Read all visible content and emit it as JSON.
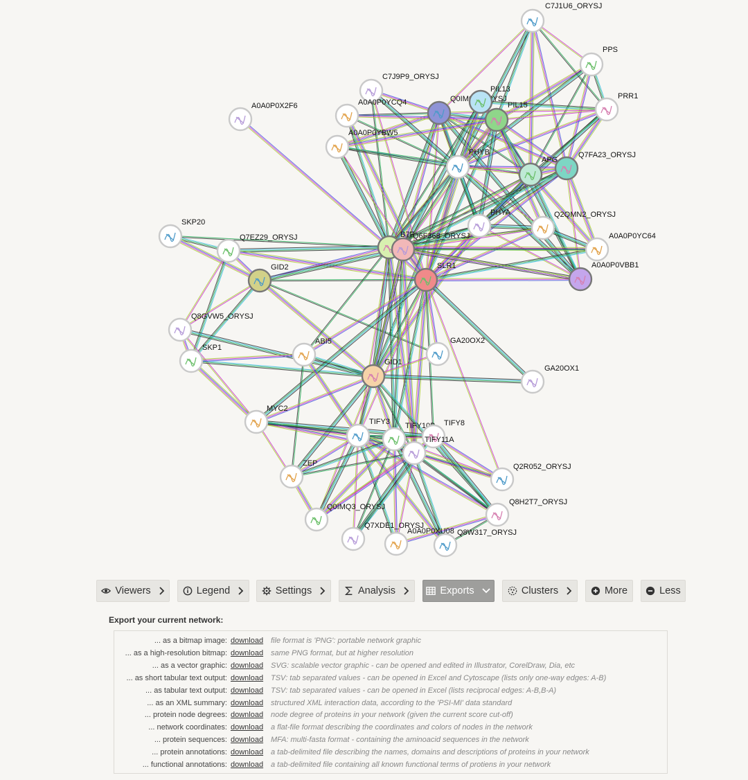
{
  "network": {
    "nodes": [
      {
        "id": "C7J1U6_ORYSJ",
        "label": "C7J1U6_ORYSJ",
        "color": "#ffffff"
      },
      {
        "id": "PPS",
        "label": "PPS",
        "color": "#ffffff"
      },
      {
        "id": "PRR1",
        "label": "PRR1",
        "color": "#ffffff"
      },
      {
        "id": "C7J9P9_ORYSJ",
        "label": "C7J9P9_ORYSJ",
        "color": "#ffffff"
      },
      {
        "id": "A0A0P0YCQ4",
        "label": "A0A0P0YCQ4",
        "color": "#ffffff"
      },
      {
        "id": "Q0IM00_ORYSJ",
        "label": "Q0IM00_ORYSJ",
        "color": "#8e93d6"
      },
      {
        "id": "PIL13",
        "label": "PIL13",
        "color": "#b9e3f5"
      },
      {
        "id": "PIL15",
        "label": "PIL15",
        "color": "#8fd68a"
      },
      {
        "id": "A0A0P0X2F6",
        "label": "A0A0P0X2F6",
        "color": "#ffffff"
      },
      {
        "id": "A0A0P0YBW5",
        "label": "A0A0P0YBW5",
        "color": "#ffffff"
      },
      {
        "id": "PHYB",
        "label": "PHYB",
        "color": "#ffffff"
      },
      {
        "id": "APG",
        "label": "APG",
        "color": "#bfe9d6"
      },
      {
        "id": "Q7FA23_ORYSJ",
        "label": "Q7FA23_ORYSJ",
        "color": "#7dd6c4"
      },
      {
        "id": "PHYA",
        "label": "PHYA",
        "color": "#ffffff"
      },
      {
        "id": "Q2QMN2_ORYSJ",
        "label": "Q2QMN2_ORYSJ",
        "color": "#ffffff"
      },
      {
        "id": "SKP20",
        "label": "SKP20",
        "color": "#ffffff"
      },
      {
        "id": "Q7EZ29_ORYSJ",
        "label": "Q7EZ29_ORYSJ",
        "color": "#ffffff"
      },
      {
        "id": "B7F",
        "label": "B7F",
        "color": "#d8f0b0"
      },
      {
        "id": "Q6F368_ORYSJ",
        "label": "Q6F368_ORYSJ",
        "color": "#f2b8b8"
      },
      {
        "id": "A0A0P0YC64",
        "label": "A0A0P0YC64",
        "color": "#ffffff"
      },
      {
        "id": "GID2",
        "label": "GID2",
        "color": "#d2d189"
      },
      {
        "id": "SLR1",
        "label": "SLR1",
        "color": "#f08a8a"
      },
      {
        "id": "A0A0P0VBB1",
        "label": "A0A0P0VBB1",
        "color": "#c4a6ec"
      },
      {
        "id": "Q8GVW5_ORYSJ",
        "label": "Q8GVW5_ORYSJ",
        "color": "#ffffff"
      },
      {
        "id": "ABI5",
        "label": "ABI5",
        "color": "#ffffff"
      },
      {
        "id": "GA20OX2",
        "label": "GA20OX2",
        "color": "#ffffff"
      },
      {
        "id": "SKP1",
        "label": "SKP1",
        "color": "#ffffff"
      },
      {
        "id": "GID1",
        "label": "GID1",
        "color": "#f6d3a8"
      },
      {
        "id": "GA20OX1",
        "label": "GA20OX1",
        "color": "#ffffff"
      },
      {
        "id": "MYC2",
        "label": "MYC2",
        "color": "#ffffff"
      },
      {
        "id": "TIFY3",
        "label": "TIFY3",
        "color": "#ffffff"
      },
      {
        "id": "TIFY10B",
        "label": "TIFY10B",
        "color": "#ffffff"
      },
      {
        "id": "TIFY8",
        "label": "TIFY8",
        "color": "#ffffff"
      },
      {
        "id": "TIFY11A",
        "label": "TIFY11A",
        "color": "#ffffff"
      },
      {
        "id": "ZEP",
        "label": "ZEP",
        "color": "#ffffff"
      },
      {
        "id": "Q2R052_ORYSJ",
        "label": "Q2R052_ORYSJ",
        "color": "#ffffff"
      },
      {
        "id": "Q0IMQ3_ORYSJ",
        "label": "Q0IMQ3_ORYSJ",
        "color": "#ffffff"
      },
      {
        "id": "Q8H2T7_ORYSJ",
        "label": "Q8H2T7_ORYSJ",
        "color": "#ffffff"
      },
      {
        "id": "Q7XDE1_ORYSJ",
        "label": "Q7XDE1_ORYSJ",
        "color": "#ffffff"
      },
      {
        "id": "A0A0P0XU08",
        "label": "A0A0P0XU08",
        "color": "#ffffff"
      },
      {
        "id": "Q8W317_ORYSJ",
        "label": "Q8W317_ORYSJ",
        "color": "#ffffff"
      }
    ],
    "edges": [
      [
        "C7J1U6_ORYSJ",
        "Q0IM00_ORYSJ"
      ],
      [
        "C7J1U6_ORYSJ",
        "PIL15"
      ],
      [
        "C7J1U6_ORYSJ",
        "APG"
      ],
      [
        "C7J1U6_ORYSJ",
        "PRR1"
      ],
      [
        "C7J1U6_ORYSJ",
        "Q7FA23_ORYSJ"
      ],
      [
        "C7J1U6_ORYSJ",
        "PHYB"
      ],
      [
        "C7J1U6_ORYSJ",
        "PPS"
      ],
      [
        "PPS",
        "PRR1"
      ],
      [
        "PPS",
        "PIL15"
      ],
      [
        "PPS",
        "APG"
      ],
      [
        "PPS",
        "Q7FA23_ORYSJ"
      ],
      [
        "PPS",
        "PHYB"
      ],
      [
        "PRR1",
        "PIL15"
      ],
      [
        "PRR1",
        "PIL13"
      ],
      [
        "PRR1",
        "Q7FA23_ORYSJ"
      ],
      [
        "PRR1",
        "APG"
      ],
      [
        "PRR1",
        "PHYB"
      ],
      [
        "PRR1",
        "PHYA"
      ],
      [
        "PRR1",
        "Q0IM00_ORYSJ"
      ],
      [
        "Q0IM00_ORYSJ",
        "PIL15"
      ],
      [
        "Q0IM00_ORYSJ",
        "PHYB"
      ],
      [
        "Q0IM00_ORYSJ",
        "APG"
      ],
      [
        "Q0IM00_ORYSJ",
        "Q7FA23_ORYSJ"
      ],
      [
        "Q0IM00_ORYSJ",
        "B7F"
      ],
      [
        "Q0IM00_ORYSJ",
        "SLR1"
      ],
      [
        "Q0IM00_ORYSJ",
        "PHYA"
      ],
      [
        "Q0IM00_ORYSJ",
        "A0A0P0YBW5"
      ],
      [
        "Q0IM00_ORYSJ",
        "A0A0P0YCQ4"
      ],
      [
        "Q0IM00_ORYSJ",
        "Q6F368_ORYSJ"
      ],
      [
        "Q0IM00_ORYSJ",
        "A0A0P0VBB1"
      ],
      [
        "PIL13",
        "PIL15"
      ],
      [
        "PIL13",
        "PHYB"
      ],
      [
        "PIL13",
        "SLR1"
      ],
      [
        "PIL13",
        "B7F"
      ],
      [
        "PIL13",
        "APG"
      ],
      [
        "PIL13",
        "Q6F368_ORYSJ"
      ],
      [
        "PIL15",
        "PHYB"
      ],
      [
        "PIL15",
        "SLR1"
      ],
      [
        "PIL15",
        "B7F"
      ],
      [
        "PIL15",
        "APG"
      ],
      [
        "PIL15",
        "Q7FA23_ORYSJ"
      ],
      [
        "PIL15",
        "PHYA"
      ],
      [
        "PIL15",
        "Q6F368_ORYSJ"
      ],
      [
        "PIL15",
        "A0A0P0VBB1"
      ],
      [
        "PIL15",
        "Q2QMN2_ORYSJ"
      ],
      [
        "C7J9P9_ORYSJ",
        "B7F"
      ],
      [
        "C7J9P9_ORYSJ",
        "Q0IM00_ORYSJ"
      ],
      [
        "C7J9P9_ORYSJ",
        "PHYB"
      ],
      [
        "C7J9P9_ORYSJ",
        "SLR1"
      ],
      [
        "A0A0P0YCQ4",
        "B7F"
      ],
      [
        "A0A0P0YCQ4",
        "SLR1"
      ],
      [
        "A0A0P0YCQ4",
        "PHYB"
      ],
      [
        "A0A0P0YCQ4",
        "PIL15"
      ],
      [
        "A0A0P0YBW5",
        "B7F"
      ],
      [
        "A0A0P0YBW5",
        "SLR1"
      ],
      [
        "A0A0P0YBW5",
        "PHYB"
      ],
      [
        "A0A0P0YBW5",
        "PIL15"
      ],
      [
        "A0A0P0YBW5",
        "APG"
      ],
      [
        "A0A0P0X2F6",
        "B7F"
      ],
      [
        "PHYB",
        "PHYA"
      ],
      [
        "PHYB",
        "APG"
      ],
      [
        "PHYB",
        "B7F"
      ],
      [
        "PHYB",
        "SLR1"
      ],
      [
        "PHYB",
        "Q6F368_ORYSJ"
      ],
      [
        "PHYB",
        "Q7FA23_ORYSJ"
      ],
      [
        "PHYB",
        "A0A0P0VBB1"
      ],
      [
        "PHYB",
        "Q2QMN2_ORYSJ"
      ],
      [
        "PHYB",
        "GID1"
      ],
      [
        "APG",
        "Q7FA23_ORYSJ"
      ],
      [
        "APG",
        "B7F"
      ],
      [
        "APG",
        "SLR1"
      ],
      [
        "APG",
        "PHYA"
      ],
      [
        "APG",
        "Q6F368_ORYSJ"
      ],
      [
        "APG",
        "A0A0P0VBB1"
      ],
      [
        "APG",
        "A0A0P0YC64"
      ],
      [
        "Q7FA23_ORYSJ",
        "B7F"
      ],
      [
        "Q7FA23_ORYSJ",
        "SLR1"
      ],
      [
        "Q7FA23_ORYSJ",
        "PHYA"
      ],
      [
        "Q7FA23_ORYSJ",
        "A0A0P0VBB1"
      ],
      [
        "Q7FA23_ORYSJ",
        "Q6F368_ORYSJ"
      ],
      [
        "Q7FA23_ORYSJ",
        "A0A0P0YC64"
      ],
      [
        "PHYA",
        "B7F"
      ],
      [
        "PHYA",
        "SLR1"
      ],
      [
        "PHYA",
        "Q2QMN2_ORYSJ"
      ],
      [
        "PHYA",
        "A0A0P0VBB1"
      ],
      [
        "PHYA",
        "Q6F368_ORYSJ"
      ],
      [
        "PHYA",
        "GID1"
      ],
      [
        "Q2QMN2_ORYSJ",
        "B7F"
      ],
      [
        "Q2QMN2_ORYSJ",
        "SLR1"
      ],
      [
        "Q2QMN2_ORYSJ",
        "A0A0P0YC64"
      ],
      [
        "Q2QMN2_ORYSJ",
        "Q6F368_ORYSJ"
      ],
      [
        "A0A0P0YC64",
        "SLR1"
      ],
      [
        "A0A0P0YC64",
        "B7F"
      ],
      [
        "A0A0P0YC64",
        "Q6F368_ORYSJ"
      ],
      [
        "A0A0P0VBB1",
        "SLR1"
      ],
      [
        "A0A0P0VBB1",
        "B7F"
      ],
      [
        "A0A0P0VBB1",
        "Q6F368_ORYSJ"
      ],
      [
        "SKP20",
        "Q7EZ29_ORYSJ"
      ],
      [
        "SKP20",
        "GID2"
      ],
      [
        "SKP20",
        "B7F"
      ],
      [
        "Q7EZ29_ORYSJ",
        "GID2"
      ],
      [
        "Q7EZ29_ORYSJ",
        "B7F"
      ],
      [
        "Q7EZ29_ORYSJ",
        "Q8GVW5_ORYSJ"
      ],
      [
        "Q7EZ29_ORYSJ",
        "SKP1"
      ],
      [
        "Q7EZ29_ORYSJ",
        "SLR1"
      ],
      [
        "GID2",
        "SLR1"
      ],
      [
        "GID2",
        "B7F"
      ],
      [
        "GID2",
        "Q6F368_ORYSJ"
      ],
      [
        "GID2",
        "Q8GVW5_ORYSJ"
      ],
      [
        "GID2",
        "SKP1"
      ],
      [
        "GID2",
        "GID1"
      ],
      [
        "GID2",
        "GA20OX2"
      ],
      [
        "Q8GVW5_ORYSJ",
        "SKP1"
      ],
      [
        "Q8GVW5_ORYSJ",
        "GID1"
      ],
      [
        "Q8GVW5_ORYSJ",
        "MYC2"
      ],
      [
        "SKP1",
        "GID1"
      ],
      [
        "SKP1",
        "MYC2"
      ],
      [
        "B7F",
        "Q6F368_ORYSJ"
      ],
      [
        "B7F",
        "SLR1"
      ],
      [
        "B7F",
        "GID1"
      ],
      [
        "B7F",
        "TIFY3"
      ],
      [
        "B7F",
        "TIFY10B"
      ],
      [
        "B7F",
        "TIFY11A"
      ],
      [
        "B7F",
        "ABI5"
      ],
      [
        "Q6F368_ORYSJ",
        "SLR1"
      ],
      [
        "Q6F368_ORYSJ",
        "GID1"
      ],
      [
        "Q6F368_ORYSJ",
        "TIFY3"
      ],
      [
        "Q6F368_ORYSJ",
        "TIFY10B"
      ],
      [
        "Q6F368_ORYSJ",
        "TIFY11A"
      ],
      [
        "SLR1",
        "GID1"
      ],
      [
        "SLR1",
        "GA20OX2"
      ],
      [
        "SLR1",
        "GA20OX1"
      ],
      [
        "SLR1",
        "TIFY3"
      ],
      [
        "SLR1",
        "TIFY10B"
      ],
      [
        "SLR1",
        "TIFY11A"
      ],
      [
        "SLR1",
        "TIFY8"
      ],
      [
        "SLR1",
        "ABI5"
      ],
      [
        "SLR1",
        "MYC2"
      ],
      [
        "SLR1",
        "Q2R052_ORYSJ"
      ],
      [
        "ABI5",
        "GID1"
      ],
      [
        "ABI5",
        "TIFY3"
      ],
      [
        "ABI5",
        "ZEP"
      ],
      [
        "ABI5",
        "SKP1"
      ],
      [
        "GID1",
        "GA20OX1"
      ],
      [
        "GID1",
        "GA20OX2"
      ],
      [
        "GID1",
        "TIFY3"
      ],
      [
        "GID1",
        "TIFY10B"
      ],
      [
        "GID1",
        "TIFY11A"
      ],
      [
        "GID1",
        "MYC2"
      ],
      [
        "GID1",
        "ZEP"
      ],
      [
        "GID1",
        "Q0IMQ3_ORYSJ"
      ],
      [
        "GID1",
        "Q8H2T7_ORYSJ"
      ],
      [
        "MYC2",
        "TIFY3"
      ],
      [
        "MYC2",
        "TIFY10B"
      ],
      [
        "MYC2",
        "TIFY11A"
      ],
      [
        "MYC2",
        "TIFY8"
      ],
      [
        "MYC2",
        "ZEP"
      ],
      [
        "TIFY3",
        "TIFY10B"
      ],
      [
        "TIFY3",
        "TIFY11A"
      ],
      [
        "TIFY3",
        "TIFY8"
      ],
      [
        "TIFY3",
        "ZEP"
      ],
      [
        "TIFY3",
        "Q0IMQ3_ORYSJ"
      ],
      [
        "TIFY3",
        "Q7XDE1_ORYSJ"
      ],
      [
        "TIFY3",
        "A0A0P0XU08"
      ],
      [
        "TIFY3",
        "Q8W317_ORYSJ"
      ],
      [
        "TIFY3",
        "Q2R052_ORYSJ"
      ],
      [
        "TIFY3",
        "Q8H2T7_ORYSJ"
      ],
      [
        "TIFY10B",
        "TIFY11A"
      ],
      [
        "TIFY10B",
        "TIFY8"
      ],
      [
        "TIFY10B",
        "ZEP"
      ],
      [
        "TIFY10B",
        "Q0IMQ3_ORYSJ"
      ],
      [
        "TIFY10B",
        "Q7XDE1_ORYSJ"
      ],
      [
        "TIFY10B",
        "A0A0P0XU08"
      ],
      [
        "TIFY10B",
        "Q8W317_ORYSJ"
      ],
      [
        "TIFY10B",
        "Q2R052_ORYSJ"
      ],
      [
        "TIFY10B",
        "Q8H2T7_ORYSJ"
      ],
      [
        "TIFY11A",
        "TIFY8"
      ],
      [
        "TIFY11A",
        "ZEP"
      ],
      [
        "TIFY11A",
        "Q0IMQ3_ORYSJ"
      ],
      [
        "TIFY11A",
        "Q7XDE1_ORYSJ"
      ],
      [
        "TIFY11A",
        "A0A0P0XU08"
      ],
      [
        "TIFY11A",
        "Q8W317_ORYSJ"
      ],
      [
        "TIFY11A",
        "Q2R052_ORYSJ"
      ],
      [
        "TIFY11A",
        "Q8H2T7_ORYSJ"
      ],
      [
        "TIFY8",
        "Q2R052_ORYSJ"
      ],
      [
        "TIFY8",
        "Q8H2T7_ORYSJ"
      ],
      [
        "TIFY8",
        "Q0IMQ3_ORYSJ"
      ],
      [
        "TIFY8",
        "Q7XDE1_ORYSJ"
      ],
      [
        "ZEP",
        "Q0IMQ3_ORYSJ"
      ],
      [
        "Q8H2T7_ORYSJ",
        "Q8W317_ORYSJ"
      ],
      [
        "Q8H2T7_ORYSJ",
        "A0A0P0XU08"
      ]
    ]
  },
  "toolbar": {
    "buttons": [
      {
        "id": "viewers",
        "label": "Viewers",
        "icon": "eye-icon",
        "chevron": "right"
      },
      {
        "id": "legend",
        "label": "Legend",
        "icon": "info-icon",
        "chevron": "right"
      },
      {
        "id": "settings",
        "label": "Settings",
        "icon": "gear-icon",
        "chevron": "right"
      },
      {
        "id": "analysis",
        "label": "Analysis",
        "icon": "sigma-icon",
        "chevron": "right"
      },
      {
        "id": "exports",
        "label": "Exports",
        "icon": "table-icon",
        "chevron": "down",
        "active": true
      },
      {
        "id": "clusters",
        "label": "Clusters",
        "icon": "cluster-icon",
        "chevron": "right"
      },
      {
        "id": "more",
        "label": "More",
        "icon": "plus-circle-icon"
      },
      {
        "id": "less",
        "label": "Less",
        "icon": "minus-circle-icon"
      }
    ]
  },
  "exports": {
    "title": "Export your current network:",
    "link_text": "download",
    "rows": [
      {
        "label": "... as a bitmap image:",
        "desc": "file format is 'PNG': portable network graphic"
      },
      {
        "label": "... as a high-resolution bitmap:",
        "desc": "same PNG format, but at higher resolution"
      },
      {
        "label": "... as a vector graphic:",
        "desc": "SVG: scalable vector graphic - can be opened and edited in Illustrator, CorelDraw, Dia, etc"
      },
      {
        "label": "... as short tabular text output:",
        "desc": "TSV: tab separated values - can be opened in Excel and Cytoscape (lists only one-way edges: A-B)"
      },
      {
        "label": "... as tabular text output:",
        "desc": "TSV: tab separated values - can be opened in Excel (lists reciprocal edges: A-B,B-A)"
      },
      {
        "label": "... as an XML summary:",
        "desc": "structured XML interaction data, according to the 'PSI-MI' data standard"
      },
      {
        "label": "... protein node degrees:",
        "desc": "node degree of proteins in your network (given the current score cut-off)"
      },
      {
        "label": "... network coordinates:",
        "desc": "a flat-file format describing the coordinates and colors of nodes in the network"
      },
      {
        "label": "... protein sequences:",
        "desc": "MFA: multi-fasta format - containing the aminoacid sequences in the network"
      },
      {
        "label": "... protein annotations:",
        "desc": "a tab-delimited file describing the names, domains and descriptions of proteins in your network"
      },
      {
        "label": "... functional annotations:",
        "desc": "a tab-delimited file containing all known functional terms of protiens in your network"
      }
    ]
  },
  "colors": {
    "edge_palette": [
      "#cc33cc",
      "#33bbdd",
      "#aacc33",
      "#22aa55",
      "#4455dd",
      "#333333"
    ]
  }
}
